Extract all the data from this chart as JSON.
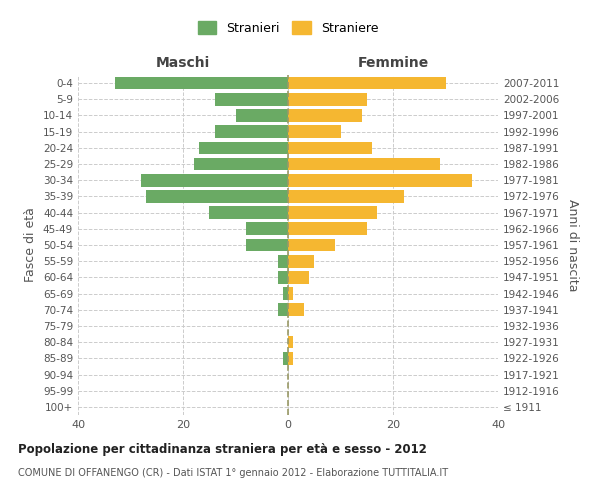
{
  "age_groups": [
    "100+",
    "95-99",
    "90-94",
    "85-89",
    "80-84",
    "75-79",
    "70-74",
    "65-69",
    "60-64",
    "55-59",
    "50-54",
    "45-49",
    "40-44",
    "35-39",
    "30-34",
    "25-29",
    "20-24",
    "15-19",
    "10-14",
    "5-9",
    "0-4"
  ],
  "birth_years": [
    "≤ 1911",
    "1912-1916",
    "1917-1921",
    "1922-1926",
    "1927-1931",
    "1932-1936",
    "1937-1941",
    "1942-1946",
    "1947-1951",
    "1952-1956",
    "1957-1961",
    "1962-1966",
    "1967-1971",
    "1972-1976",
    "1977-1981",
    "1982-1986",
    "1987-1991",
    "1992-1996",
    "1997-2001",
    "2002-2006",
    "2007-2011"
  ],
  "maschi": [
    0,
    0,
    0,
    1,
    0,
    0,
    2,
    1,
    2,
    2,
    8,
    8,
    15,
    27,
    28,
    18,
    17,
    14,
    10,
    14,
    33
  ],
  "femmine": [
    0,
    0,
    0,
    1,
    1,
    0,
    3,
    1,
    4,
    5,
    9,
    15,
    17,
    22,
    35,
    29,
    16,
    10,
    14,
    15,
    30
  ],
  "maschi_color": "#6aaa64",
  "femmine_color": "#f5b731",
  "background_color": "#ffffff",
  "grid_color": "#cccccc",
  "title": "Popolazione per cittadinanza straniera per età e sesso - 2012",
  "subtitle": "COMUNE DI OFFANENGO (CR) - Dati ISTAT 1° gennaio 2012 - Elaborazione TUTTITALIA.IT",
  "ylabel_left": "Fasce di età",
  "ylabel_right": "Anni di nascita",
  "xlabel_left": "Maschi",
  "xlabel_right": "Femmine",
  "legend_stranieri": "Stranieri",
  "legend_straniere": "Straniere",
  "xlim": 40
}
